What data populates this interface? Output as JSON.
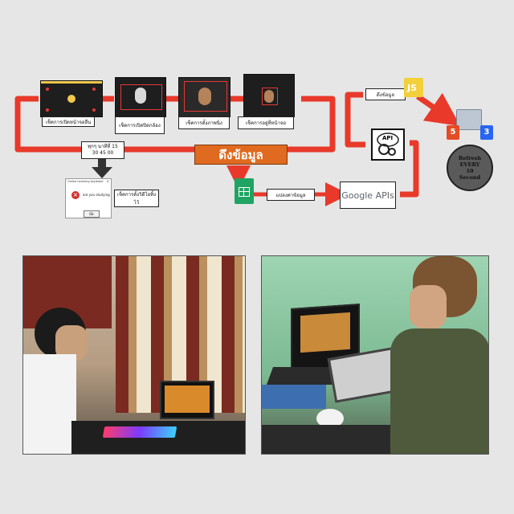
{
  "flow": {
    "thumbs": [
      {
        "label": "เช็คการเปิดหน้าจออื่น"
      },
      {
        "label": "เช็คการเปิดปิดกล้อง"
      },
      {
        "label": "เช็คการตั้งภาพนิ่ง"
      },
      {
        "label": "เช็คการอยู่ที่หน้าจอ"
      }
    ],
    "timer_label": "ทุกๆ นาทีที่ 15 30 45 00",
    "pull_data": "ดึงข้อมูล",
    "pull_data_small": "ดึงข้อมูล",
    "convert_label": "แปลงค่าข้อมูล",
    "google_apis": "Google APIs",
    "api_icon_text": "API",
    "js_badge": "JS",
    "html_badge": "5",
    "css_badge": "3",
    "refresh_text": [
      "Refresh",
      "EVERY",
      "10",
      "Second"
    ],
    "popup": {
      "title": "Online Learning Assistant",
      "message": "are you studying",
      "ok": "Ok",
      "close": "x"
    },
    "popup_label": "เช็คการตั้งวิดีโอทิ้งไว้"
  },
  "colors": {
    "flow_arrow": "#e8392a",
    "pull_badge": "#e06a1f",
    "sheets_green": "#1fa463",
    "js_yellow": "#f2d03b",
    "html_orange": "#e34c26",
    "css_blue": "#2965f1"
  }
}
